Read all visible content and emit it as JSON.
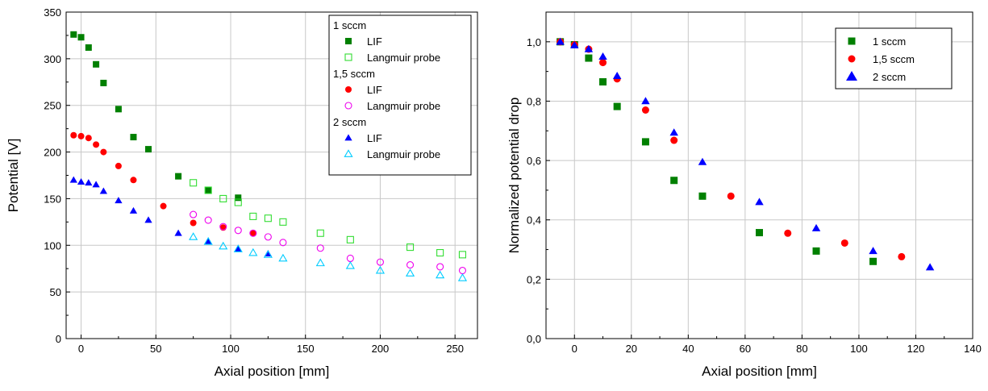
{
  "chart_data": [
    {
      "type": "scatter",
      "xlabel": "Axial position [mm]",
      "ylabel": "Potential [V]",
      "xlim": [
        -10,
        265
      ],
      "ylim": [
        0,
        350
      ],
      "xticks": [
        0,
        50,
        100,
        150,
        200,
        250
      ],
      "xtick_labels": [
        "0",
        "50",
        "100",
        "150",
        "200",
        "250"
      ],
      "yticks": [
        0,
        50,
        100,
        150,
        200,
        250,
        300,
        350
      ],
      "ytick_labels": [
        "0",
        "50",
        "100",
        "150",
        "200",
        "250",
        "300",
        "350"
      ],
      "grid": true,
      "legend_position": "top-right",
      "legend_groups": [
        "1 sccm",
        "1,5 sccm",
        "2 sccm"
      ],
      "series": [
        {
          "group": "1 sccm",
          "name": "LIF",
          "marker": "square",
          "filled": true,
          "color": "#008000",
          "x": [
            -5,
            0,
            5,
            10,
            15,
            25,
            35,
            45,
            65,
            85,
            105
          ],
          "y": [
            326,
            323,
            312,
            294,
            274,
            246,
            216,
            203,
            174,
            159,
            151
          ]
        },
        {
          "group": "1 sccm",
          "name": "Langmuir probe",
          "marker": "square",
          "filled": false,
          "color": "#33dd33",
          "x": [
            75,
            85,
            95,
            105,
            115,
            125,
            135,
            160,
            180,
            220,
            240,
            255
          ],
          "y": [
            167,
            159,
            150,
            146,
            131,
            129,
            125,
            113,
            106,
            98,
            92,
            90
          ]
        },
        {
          "group": "1,5 sccm",
          "name": "LIF",
          "marker": "circle",
          "filled": true,
          "color": "#ff0000",
          "x": [
            -5,
            0,
            5,
            10,
            15,
            25,
            35,
            55,
            75,
            95,
            115
          ],
          "y": [
            218,
            217,
            215,
            208,
            200,
            185,
            170,
            142,
            124,
            119,
            113
          ]
        },
        {
          "group": "1,5 sccm",
          "name": "Langmuir probe",
          "marker": "circle",
          "filled": false,
          "color": "#ee00ee",
          "x": [
            75,
            85,
            95,
            105,
            115,
            125,
            135,
            160,
            180,
            200,
            220,
            240,
            255
          ],
          "y": [
            133,
            127,
            120,
            116,
            113,
            109,
            103,
            97,
            86,
            82,
            79,
            77,
            73
          ]
        },
        {
          "group": "2 sccm",
          "name": "LIF",
          "marker": "triangle",
          "filled": true,
          "color": "#0000ff",
          "x": [
            -5,
            0,
            5,
            10,
            15,
            25,
            35,
            45,
            65,
            85,
            105,
            125
          ],
          "y": [
            170,
            168,
            167,
            165,
            158,
            148,
            137,
            127,
            113,
            104,
            96,
            91
          ]
        },
        {
          "group": "2 sccm",
          "name": "Langmuir probe",
          "marker": "triangle",
          "filled": false,
          "color": "#00ccff",
          "x": [
            75,
            85,
            95,
            105,
            115,
            125,
            135,
            160,
            180,
            200,
            220,
            240,
            255
          ],
          "y": [
            109,
            104,
            99,
            96,
            92,
            90,
            86,
            81,
            78,
            73,
            70,
            68,
            65
          ]
        }
      ]
    },
    {
      "type": "scatter",
      "xlabel": "Axial position [mm]",
      "ylabel": "Normalized potential drop",
      "xlim": [
        -10,
        140
      ],
      "ylim": [
        0,
        1.1
      ],
      "xticks": [
        0,
        20,
        40,
        60,
        80,
        100,
        120,
        140
      ],
      "xtick_labels": [
        "0",
        "20",
        "40",
        "60",
        "80",
        "100",
        "120",
        "140"
      ],
      "yticks": [
        0,
        0.2,
        0.4,
        0.6,
        0.8,
        1.0
      ],
      "ytick_labels": [
        "0,0",
        "0,2",
        "0,4",
        "0,6",
        "0,8",
        "1,0"
      ],
      "grid": true,
      "legend_position": "top-right",
      "series": [
        {
          "name": "1 sccm",
          "marker": "square",
          "filled": true,
          "color": "#008000",
          "x": [
            -5,
            0,
            5,
            10,
            15,
            25,
            35,
            45,
            65,
            85,
            105
          ],
          "y": [
            1.0,
            0.99,
            0.945,
            0.865,
            0.782,
            0.663,
            0.533,
            0.48,
            0.357,
            0.295,
            0.26
          ]
        },
        {
          "name": "1,5 sccm",
          "marker": "circle",
          "filled": true,
          "color": "#ff0000",
          "x": [
            -5,
            0,
            5,
            10,
            15,
            25,
            35,
            55,
            75,
            95,
            115
          ],
          "y": [
            1.0,
            0.99,
            0.975,
            0.93,
            0.875,
            0.77,
            0.668,
            0.48,
            0.355,
            0.322,
            0.276
          ]
        },
        {
          "name": "2 sccm",
          "marker": "triangle",
          "filled": true,
          "color": "#0000ff",
          "x": [
            -5,
            0,
            5,
            10,
            15,
            25,
            35,
            45,
            65,
            85,
            105,
            125
          ],
          "y": [
            1.0,
            0.988,
            0.975,
            0.95,
            0.885,
            0.8,
            0.694,
            0.595,
            0.46,
            0.372,
            0.295,
            0.24
          ]
        }
      ]
    }
  ]
}
